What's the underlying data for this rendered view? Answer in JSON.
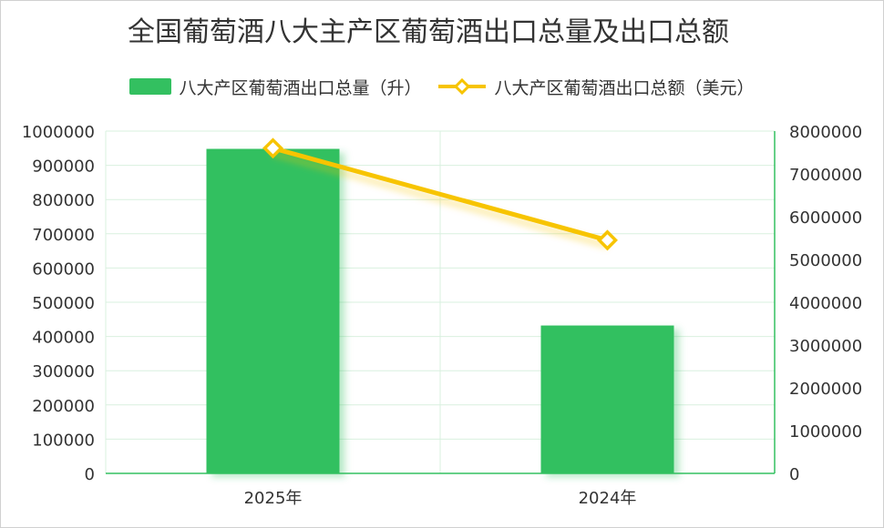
{
  "chart_data": {
    "type": "bar",
    "title": "全国葡萄酒八大主产区葡萄酒出口总量及出口总额",
    "categories": [
      "2025年",
      "2024年"
    ],
    "series": [
      {
        "name": "八大产区葡萄酒出口总量（升）",
        "type": "bar",
        "axis": "left",
        "color": "#33c060",
        "values": [
          948000,
          432000
        ]
      },
      {
        "name": "八大产区葡萄酒出口总额（美元）",
        "type": "line",
        "axis": "right",
        "color": "#f7c400",
        "values": [
          7600000,
          5450000
        ]
      }
    ],
    "ylim_left": [
      0,
      1000000
    ],
    "ylim_right": [
      0,
      8000000
    ],
    "yticks_left": [
      "0",
      "100000",
      "200000",
      "300000",
      "400000",
      "500000",
      "600000",
      "700000",
      "800000",
      "900000",
      "1000000"
    ],
    "yticks_right": [
      "0",
      "1000000",
      "2000000",
      "3000000",
      "4000000",
      "5000000",
      "6000000",
      "7000000",
      "8000000"
    ],
    "grid": true,
    "legend_position": "top"
  }
}
